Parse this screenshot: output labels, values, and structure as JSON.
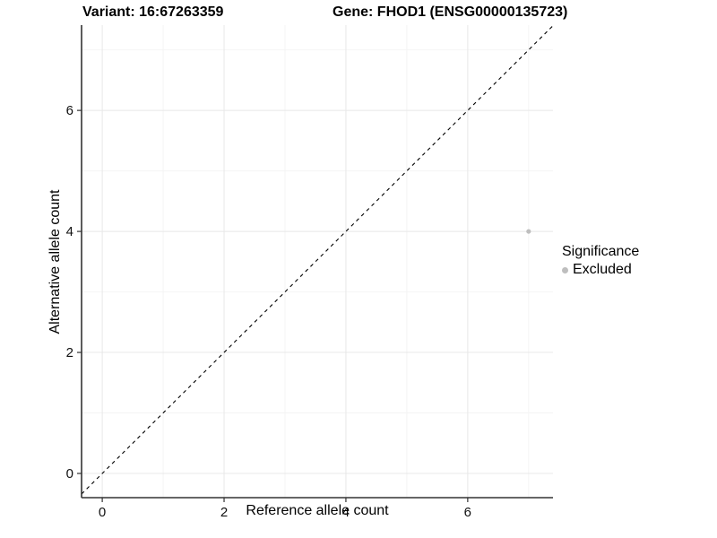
{
  "chart_data": {
    "type": "scatter",
    "title_left": "Variant: 16:67263359",
    "title_right": "Gene: FHOD1 (ENSG00000135723)",
    "xlabel": "Reference allele count",
    "ylabel": "Alternative allele count",
    "xlim": [
      -0.34,
      7.4
    ],
    "ylim": [
      -0.4,
      7.41
    ],
    "x_ticks": [
      0,
      2,
      4,
      6
    ],
    "y_ticks": [
      0,
      2,
      4,
      6
    ],
    "x_minor_ticks": [
      1,
      3,
      5,
      7
    ],
    "y_minor_ticks": [
      1,
      3,
      5,
      7
    ],
    "grid": true,
    "series": [
      {
        "name": "Excluded",
        "color": "#bebebe",
        "point_radius": 2.6,
        "points": [
          {
            "x": 7,
            "y": 4
          }
        ]
      }
    ],
    "reference_line": {
      "kind": "identity y=x",
      "slope": 1,
      "intercept": 0,
      "dashed": true,
      "color": "#000000"
    },
    "legend": {
      "title": "Significance",
      "position": "right",
      "items": [
        {
          "label": "Excluded",
          "color": "#bebebe"
        }
      ]
    }
  },
  "colors": {
    "background": "#ffffff",
    "grid_major": "#e8e8e8",
    "grid_minor": "#f4f4f4",
    "axis_line": "#333333",
    "tick_mark": "#333333",
    "tick_label": "#111111",
    "point": "#bebebe"
  }
}
